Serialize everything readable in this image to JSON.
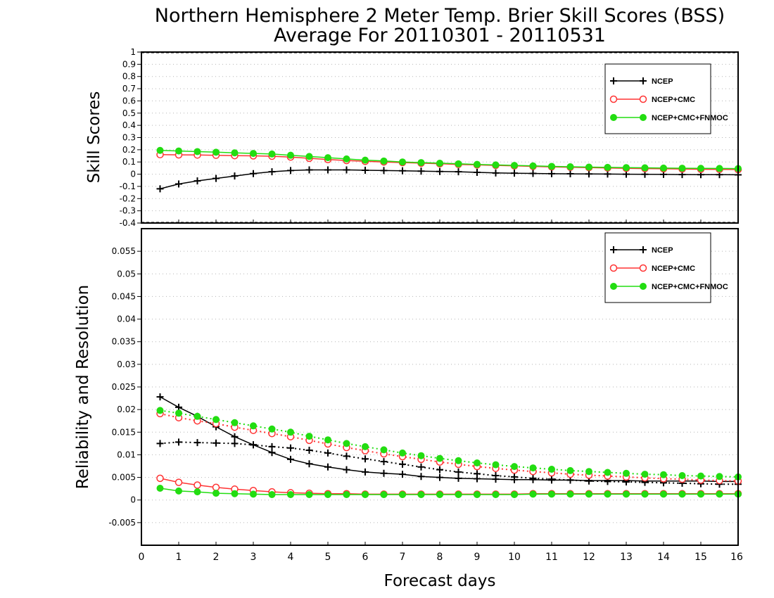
{
  "title_line1": "Northern Hemisphere 2 Meter Temp. Brier Skill Scores (BSS)",
  "title_line2": "Average For 20110301 - 20110531",
  "colors": {
    "ncep": "#000000",
    "ncep_cmc": "#ff3333",
    "ncep_cmc_fnmoc": "#22dd11"
  },
  "chart_data": [
    {
      "type": "line",
      "ylabel": "Skill Scores",
      "xlabel": "Forecast days",
      "xlim": [
        0,
        16
      ],
      "ylim": [
        -0.4,
        1
      ],
      "y_ticks": [
        "-0.4",
        "-0.3",
        "-0.2",
        "-0.1",
        "0",
        "0.1",
        "0.2",
        "0.3",
        "0.4",
        "0.5",
        "0.6",
        "0.7",
        "0.8",
        "0.9",
        "1"
      ],
      "x_ticks": [
        "0",
        "1",
        "2",
        "3",
        "4",
        "5",
        "6",
        "7",
        "8",
        "9",
        "10",
        "11",
        "12",
        "13",
        "14",
        "15",
        "16"
      ],
      "legend": [
        "NCEP",
        "NCEP+CMC",
        "NCEP+CMC+FNMOC"
      ],
      "legend_position": "top-right",
      "x": [
        0.5,
        1,
        1.5,
        2,
        2.5,
        3,
        3.5,
        4,
        4.5,
        5,
        5.5,
        6,
        6.5,
        7,
        7.5,
        8,
        8.5,
        9,
        9.5,
        10,
        10.5,
        11,
        11.5,
        12,
        12.5,
        13,
        13.5,
        14,
        14.5,
        15,
        15.5,
        16
      ],
      "series": [
        {
          "name": "NCEP",
          "values": [
            -0.12,
            -0.08,
            -0.055,
            -0.035,
            -0.015,
            0.005,
            0.02,
            0.03,
            0.035,
            0.035,
            0.035,
            0.032,
            0.03,
            0.028,
            0.025,
            0.022,
            0.02,
            0.015,
            0.01,
            0.008,
            0.006,
            0.004,
            0.003,
            0.002,
            0.001,
            0.0,
            -0.001,
            -0.002,
            -0.003,
            -0.004,
            -0.004,
            -0.005
          ]
        },
        {
          "name": "NCEP+CMC",
          "values": [
            0.16,
            0.158,
            0.157,
            0.155,
            0.152,
            0.15,
            0.147,
            0.14,
            0.13,
            0.12,
            0.112,
            0.105,
            0.1,
            0.095,
            0.09,
            0.085,
            0.08,
            0.076,
            0.072,
            0.068,
            0.064,
            0.06,
            0.057,
            0.054,
            0.051,
            0.048,
            0.046,
            0.044,
            0.042,
            0.04,
            0.039,
            0.038
          ]
        },
        {
          "name": "NCEP+CMC+FNMOC",
          "values": [
            0.195,
            0.19,
            0.185,
            0.18,
            0.175,
            0.17,
            0.165,
            0.155,
            0.145,
            0.135,
            0.125,
            0.115,
            0.108,
            0.1,
            0.095,
            0.09,
            0.085,
            0.08,
            0.076,
            0.072,
            0.068,
            0.064,
            0.061,
            0.058,
            0.056,
            0.054,
            0.052,
            0.05,
            0.049,
            0.048,
            0.047,
            0.046
          ]
        }
      ]
    },
    {
      "type": "line",
      "ylabel": "Reliability and Resolution",
      "xlabel": "Forecast days",
      "xlim": [
        0,
        16
      ],
      "ylim": [
        -0.01,
        0.06
      ],
      "y_ticks": [
        "-0.005",
        "0",
        "0.005",
        "0.01",
        "0.015",
        "0.02",
        "0.025",
        "0.03",
        "0.035",
        "0.04",
        "0.045",
        "0.05",
        "0.055"
      ],
      "x_ticks": [
        "0",
        "1",
        "2",
        "3",
        "4",
        "5",
        "6",
        "7",
        "8",
        "9",
        "10",
        "11",
        "12",
        "13",
        "14",
        "15",
        "16"
      ],
      "legend": [
        "NCEP",
        "NCEP+CMC",
        "NCEP+CMC+FNMOC"
      ],
      "legend_position": "top-right",
      "x": [
        0.5,
        1,
        1.5,
        2,
        2.5,
        3,
        3.5,
        4,
        4.5,
        5,
        5.5,
        6,
        6.5,
        7,
        7.5,
        8,
        8.5,
        9,
        9.5,
        10,
        10.5,
        11,
        11.5,
        12,
        12.5,
        13,
        13.5,
        14,
        14.5,
        15,
        15.5,
        16
      ],
      "series": [
        {
          "name": "NCEP",
          "style": "solid",
          "values": [
            0.0228,
            0.0205,
            0.0185,
            0.0162,
            0.014,
            0.0122,
            0.0105,
            0.009,
            0.008,
            0.0073,
            0.0067,
            0.0062,
            0.0059,
            0.0057,
            0.0052,
            0.005,
            0.0048,
            0.0047,
            0.0046,
            0.0045,
            0.0045,
            0.0044,
            0.0044,
            0.0043,
            0.0043,
            0.0043,
            0.0042,
            0.0042,
            0.0042,
            0.0042,
            0.0041,
            0.0041
          ]
        },
        {
          "name": "NCEP",
          "style": "dotted",
          "values": [
            0.0125,
            0.0128,
            0.0127,
            0.0126,
            0.0125,
            0.0122,
            0.0118,
            0.0115,
            0.011,
            0.0104,
            0.0097,
            0.0091,
            0.0085,
            0.0079,
            0.0073,
            0.0067,
            0.0062,
            0.0058,
            0.0054,
            0.0051,
            0.0048,
            0.0046,
            0.0044,
            0.0042,
            0.0041,
            0.004,
            0.0039,
            0.0038,
            0.0037,
            0.0036,
            0.0035,
            0.0035
          ]
        },
        {
          "name": "NCEP+CMC",
          "style": "solid",
          "values": [
            0.0048,
            0.0039,
            0.0033,
            0.0028,
            0.0024,
            0.0021,
            0.0018,
            0.0016,
            0.0015,
            0.0014,
            0.0014,
            0.0013,
            0.0013,
            0.0013,
            0.0013,
            0.0013,
            0.0013,
            0.0013,
            0.0013,
            0.0013,
            0.0014,
            0.0014,
            0.0014,
            0.0014,
            0.0014,
            0.0014,
            0.0014,
            0.0014,
            0.0014,
            0.0014,
            0.0014,
            0.0014
          ]
        },
        {
          "name": "NCEP+CMC",
          "style": "dotted",
          "values": [
            0.0191,
            0.0182,
            0.0175,
            0.0169,
            0.0161,
            0.0154,
            0.0147,
            0.014,
            0.0132,
            0.0124,
            0.0116,
            0.0109,
            0.0102,
            0.0096,
            0.009,
            0.0084,
            0.0079,
            0.0074,
            0.007,
            0.0066,
            0.0063,
            0.006,
            0.0057,
            0.0055,
            0.0053,
            0.0051,
            0.0049,
            0.0047,
            0.0046,
            0.0044,
            0.0043,
            0.0042
          ]
        },
        {
          "name": "NCEP+CMC+FNMOC",
          "style": "solid",
          "values": [
            0.0026,
            0.002,
            0.0018,
            0.0015,
            0.0014,
            0.0013,
            0.0012,
            0.0012,
            0.0012,
            0.0012,
            0.0012,
            0.0012,
            0.0012,
            0.0012,
            0.0012,
            0.0012,
            0.0012,
            0.0012,
            0.0012,
            0.0012,
            0.0013,
            0.0013,
            0.0013,
            0.0013,
            0.0013,
            0.0013,
            0.0013,
            0.0013,
            0.0013,
            0.0013,
            0.0013,
            0.0013
          ]
        },
        {
          "name": "NCEP+CMC+FNMOC",
          "style": "dotted",
          "values": [
            0.0198,
            0.0192,
            0.0185,
            0.0178,
            0.0171,
            0.0164,
            0.0157,
            0.015,
            0.0141,
            0.0133,
            0.0125,
            0.0118,
            0.0111,
            0.0104,
            0.0098,
            0.0092,
            0.0087,
            0.0082,
            0.0078,
            0.0074,
            0.0071,
            0.0068,
            0.0065,
            0.0063,
            0.0061,
            0.0059,
            0.0057,
            0.0056,
            0.0054,
            0.0053,
            0.0052,
            0.0051
          ]
        }
      ]
    }
  ]
}
